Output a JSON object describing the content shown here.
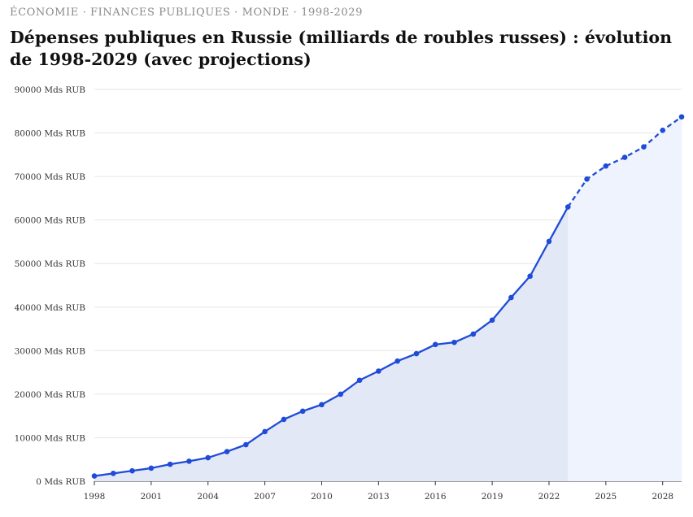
{
  "header": {
    "kicker": "ÉCONOMIE · FINANCES PUBLIQUES · MONDE · 1998-2029",
    "title": "Dépenses publiques en Russie (milliards de roubles russes) : évolution de 1998-2029 (avec projections)"
  },
  "chart_data": {
    "type": "line",
    "title": "Dépenses publiques en Russie (milliards de roubles russes) : évolution de 1998-2029 (avec projections)",
    "xlabel": "",
    "ylabel": "",
    "x": [
      1998,
      1999,
      2000,
      2001,
      2002,
      2003,
      2004,
      2005,
      2006,
      2007,
      2008,
      2009,
      2010,
      2011,
      2012,
      2013,
      2014,
      2015,
      2016,
      2017,
      2018,
      2019,
      2020,
      2021,
      2022,
      2023,
      2024,
      2025,
      2026,
      2027,
      2028,
      2029
    ],
    "series": [
      {
        "values": [
          1200,
          1800,
          2400,
          3000,
          3900,
          4600,
          5400,
          6800,
          8400,
          11400,
          14200,
          16100,
          17600,
          20000,
          23200,
          25300,
          27600,
          29300,
          31400,
          31900,
          33800,
          37000,
          42200,
          47100,
          55100,
          63000,
          69400,
          72400,
          74400,
          76800,
          80600,
          83700
        ],
        "projected_from": 2023
      }
    ],
    "x_ticks": [
      1998,
      2001,
      2004,
      2007,
      2010,
      2013,
      2016,
      2019,
      2022,
      2025,
      2028
    ],
    "y_ticks": [
      0,
      10000,
      20000,
      30000,
      40000,
      50000,
      60000,
      70000,
      80000,
      90000
    ],
    "y_tick_suffix": " Mds RUB",
    "xlim": [
      1998,
      2029
    ],
    "ylim": [
      0,
      90000
    ],
    "grid": true,
    "colors": {
      "line": "#1f4bd8",
      "area": "#e3e8f7",
      "area_projection": "#eff3fd",
      "grid": "#e6e6e6",
      "axis": "#333333"
    }
  }
}
